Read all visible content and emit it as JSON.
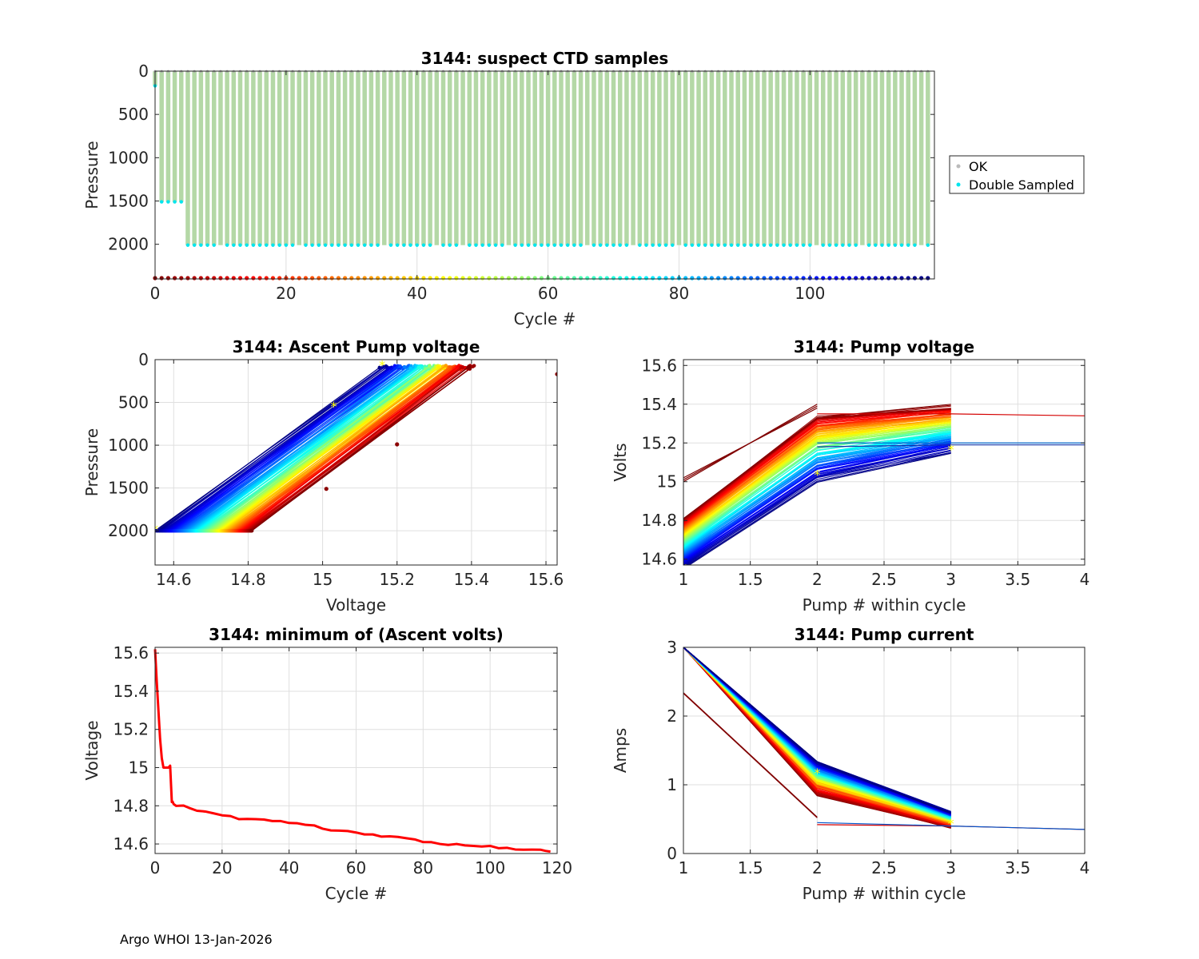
{
  "footer": "Argo WHOI 13-Jan-2026",
  "chart_data": [
    {
      "id": "ctd",
      "type": "scatter",
      "title": "3144: suspect CTD samples",
      "xlabel": "Cycle #",
      "ylabel": "Pressure",
      "xlim": [
        0,
        119
      ],
      "ylim": [
        0,
        2400
      ],
      "y_reversed": true,
      "xticks": [
        0,
        20,
        40,
        60,
        80,
        100
      ],
      "yticks": [
        0,
        500,
        1000,
        1500,
        2000
      ],
      "xgrid": [
        20,
        40,
        60,
        80,
        100
      ],
      "cycles": 118,
      "profile_depth_by_cycle": [
        {
          "from": 0,
          "to": 0,
          "pressure": 170
        },
        {
          "from": 1,
          "to": 4,
          "pressure": 1510
        },
        {
          "from": 5,
          "to": 118,
          "pressure": 2010
        }
      ],
      "legend": {
        "position": "right",
        "entries": [
          {
            "label": "OK",
            "color": "#bbbbbb"
          },
          {
            "label": "Double Sampled",
            "color": "#00e5ee"
          }
        ]
      }
    },
    {
      "id": "ascent",
      "type": "scatter",
      "title": "3144: Ascent Pump voltage",
      "xlabel": "Voltage",
      "ylabel": "Pressure",
      "xlim": [
        14.55,
        15.63
      ],
      "ylim": [
        0,
        2400
      ],
      "y_reversed": true,
      "xticks": [
        14.6,
        14.8,
        15,
        15.2,
        15.4,
        15.6
      ],
      "xticklabels": [
        "14.6",
        "14.8",
        "15",
        "15.2",
        "15.4",
        "15.6"
      ],
      "yticks": [
        0,
        500,
        1000,
        1500,
        2000
      ],
      "cycles": 118,
      "deep_pressure": 2000,
      "shallow_pressure": 70,
      "deep_voltage_range": [
        14.55,
        14.81
      ],
      "shallow_voltage_range": [
        15.16,
        15.4
      ],
      "outliers": [
        {
          "voltage": 15.63,
          "pressure": 170
        },
        {
          "voltage": 15.01,
          "pressure": 1510
        },
        {
          "voltage": 15.2,
          "pressure": 990
        }
      ]
    },
    {
      "id": "pumpv",
      "type": "line",
      "title": "3144: Pump voltage",
      "xlabel": "Pump # within cycle",
      "ylabel": "Volts",
      "xlim": [
        1,
        4
      ],
      "ylim": [
        14.57,
        15.63
      ],
      "xticks": [
        1,
        1.5,
        2,
        2.5,
        3,
        3.5,
        4
      ],
      "xticklabels": [
        "1",
        "1.5",
        "2",
        "2.5",
        "3",
        "3.5",
        "4"
      ],
      "yticks": [
        14.6,
        14.8,
        15,
        15.2,
        15.4,
        15.6
      ],
      "yticklabels": [
        "14.6",
        "14.8",
        "15",
        "15.2",
        "15.4",
        "15.6"
      ],
      "cycles": 118,
      "pump1_range": [
        14.55,
        14.81
      ],
      "pump2_range": [
        15.0,
        15.34
      ],
      "pump3_range": [
        15.15,
        15.39
      ],
      "early_two_pump_lines": [
        [
          15.0,
          15.4
        ],
        [
          15.01,
          15.39
        ],
        [
          15.02,
          15.38
        ]
      ],
      "four_pump_lines": [
        {
          "values": [
            15.35,
            15.35,
            15.34
          ],
          "color": "#d40000"
        },
        {
          "values": [
            15.2,
            15.2,
            15.2
          ],
          "color": "#0066cc"
        },
        {
          "values": [
            15.18,
            15.19,
            15.19
          ],
          "color": "#1133aa"
        }
      ]
    },
    {
      "id": "minv",
      "type": "line",
      "title": "3144: minimum of (Ascent volts)",
      "xlabel": "Cycle #",
      "ylabel": "Voltage",
      "xlim": [
        0,
        120
      ],
      "ylim": [
        14.55,
        15.63
      ],
      "xticks": [
        0,
        20,
        40,
        60,
        80,
        100,
        120
      ],
      "yticks": [
        14.6,
        14.8,
        15,
        15.2,
        15.4,
        15.6
      ],
      "yticklabels": [
        "14.6",
        "14.8",
        "15",
        "15.2",
        "15.4",
        "15.6"
      ],
      "color": "#ff0000",
      "x": [
        0,
        0.5,
        1,
        1.5,
        2,
        2.5,
        3,
        4,
        4.5,
        5,
        5.5,
        7,
        10,
        15,
        20,
        25,
        30,
        35,
        40,
        45,
        50,
        55,
        60,
        65,
        70,
        75,
        80,
        85,
        90,
        95,
        100,
        105,
        110,
        115,
        118
      ],
      "y": [
        15.62,
        15.45,
        15.3,
        15.15,
        15.05,
        15.0,
        15.0,
        15.0,
        15.01,
        14.82,
        14.81,
        14.8,
        14.79,
        14.77,
        14.75,
        14.73,
        14.73,
        14.72,
        14.71,
        14.7,
        14.68,
        14.67,
        14.66,
        14.65,
        14.64,
        14.63,
        14.61,
        14.6,
        14.6,
        14.59,
        14.59,
        14.58,
        14.57,
        14.57,
        14.56
      ]
    },
    {
      "id": "curr",
      "type": "line",
      "title": "3144: Pump current",
      "xlabel": "Pump # within cycle",
      "ylabel": "Amps",
      "xlim": [
        1,
        4
      ],
      "ylim": [
        0,
        3
      ],
      "xticks": [
        1,
        1.5,
        2,
        2.5,
        3,
        3.5,
        4
      ],
      "xticklabels": [
        "1",
        "1.5",
        "2",
        "2.5",
        "3",
        "3.5",
        "4"
      ],
      "yticks": [
        0,
        1,
        2,
        3
      ],
      "cycles": 118,
      "pump1_value": 3.0,
      "pump2_range": [
        0.85,
        1.33
      ],
      "pump3_range": [
        0.37,
        0.6
      ],
      "early_two_pump_lines": [
        [
          2.33,
          0.52
        ],
        [
          2.34,
          0.53
        ]
      ],
      "four_pump_lines": [
        {
          "values": [
            0.42,
            0.4,
            0.35
          ],
          "color": "#d40000"
        },
        {
          "values": [
            0.45,
            0.4,
            0.35
          ],
          "color": "#0055cc"
        }
      ]
    }
  ]
}
